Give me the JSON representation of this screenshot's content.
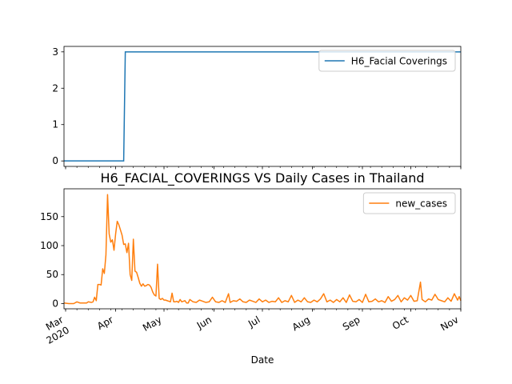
{
  "chart_data": [
    {
      "type": "line",
      "title": "",
      "xlabel": "",
      "ylabel": "",
      "ylim": [
        -0.15,
        3.15
      ],
      "yticks": [
        0,
        1,
        2,
        3
      ],
      "legend": "top-right",
      "series": [
        {
          "name": "H6_Facial Coverings",
          "color": "#1f77b4",
          "points": [
            [
              "2020-02-29",
              0
            ],
            [
              "2020-04-06",
              0
            ],
            [
              "2020-04-07",
              3
            ],
            [
              "2020-11-01",
              3
            ]
          ]
        }
      ]
    },
    {
      "type": "line",
      "title": "H6_FACIAL_COVERINGS VS Daily Cases in Thailand",
      "xlabel": "Date",
      "ylabel": "",
      "ylim": [
        -9,
        198
      ],
      "yticks": [
        0,
        50,
        100,
        150
      ],
      "legend": "top-right",
      "x_start": "2020-02-29",
      "x_end": "2020-11-01",
      "x_tick_labels": [
        {
          "date": "2020-03-01",
          "label": "Mar",
          "label2": "2020"
        },
        {
          "date": "2020-04-01",
          "label": "Apr"
        },
        {
          "date": "2020-05-01",
          "label": "May"
        },
        {
          "date": "2020-06-01",
          "label": "Jun"
        },
        {
          "date": "2020-07-01",
          "label": "Jul"
        },
        {
          "date": "2020-08-01",
          "label": "Aug"
        },
        {
          "date": "2020-09-01",
          "label": "Sep"
        },
        {
          "date": "2020-10-01",
          "label": "Oct"
        },
        {
          "date": "2020-11-01",
          "label": "Nov"
        }
      ],
      "series": [
        {
          "name": "new_cases",
          "color": "#ff7f0e",
          "points": [
            [
              "2020-02-29",
              1
            ],
            [
              "2020-03-03",
              0
            ],
            [
              "2020-03-06",
              0
            ],
            [
              "2020-03-08",
              3
            ],
            [
              "2020-03-10",
              1
            ],
            [
              "2020-03-12",
              1
            ],
            [
              "2020-03-14",
              1
            ],
            [
              "2020-03-15",
              3
            ],
            [
              "2020-03-17",
              2
            ],
            [
              "2020-03-18",
              3
            ],
            [
              "2020-03-19",
              11
            ],
            [
              "2020-03-20",
              5
            ],
            [
              "2020-03-21",
              33
            ],
            [
              "2020-03-22",
              33
            ],
            [
              "2020-03-23",
              32
            ],
            [
              "2020-03-24",
              60
            ],
            [
              "2020-03-25",
              52
            ],
            [
              "2020-03-26",
              84
            ],
            [
              "2020-03-27",
              188
            ],
            [
              "2020-03-28",
              120
            ],
            [
              "2020-03-29",
              106
            ],
            [
              "2020-03-30",
              110
            ],
            [
              "2020-03-31",
              92
            ],
            [
              "2020-04-01",
              120
            ],
            [
              "2020-04-02",
              142
            ],
            [
              "2020-04-03",
              136
            ],
            [
              "2020-04-04",
              127
            ],
            [
              "2020-04-05",
              118
            ],
            [
              "2020-04-06",
              102
            ],
            [
              "2020-04-07",
              103
            ],
            [
              "2020-04-08",
              88
            ],
            [
              "2020-04-09",
              104
            ],
            [
              "2020-04-10",
              50
            ],
            [
              "2020-04-11",
              40
            ],
            [
              "2020-04-12",
              111
            ],
            [
              "2020-04-13",
              56
            ],
            [
              "2020-04-14",
              54
            ],
            [
              "2020-04-15",
              45
            ],
            [
              "2020-04-16",
              35
            ],
            [
              "2020-04-17",
              30
            ],
            [
              "2020-04-18",
              34
            ],
            [
              "2020-04-19",
              30
            ],
            [
              "2020-04-20",
              31
            ],
            [
              "2020-04-21",
              33
            ],
            [
              "2020-04-22",
              32
            ],
            [
              "2020-04-23",
              28
            ],
            [
              "2020-04-24",
              20
            ],
            [
              "2020-04-25",
              15
            ],
            [
              "2020-04-26",
              13
            ],
            [
              "2020-04-27",
              68
            ],
            [
              "2020-04-28",
              9
            ],
            [
              "2020-04-29",
              7
            ],
            [
              "2020-04-30",
              9
            ],
            [
              "2020-05-01",
              6
            ],
            [
              "2020-05-02",
              6
            ],
            [
              "2020-05-03",
              5
            ],
            [
              "2020-05-04",
              4
            ],
            [
              "2020-05-05",
              3
            ],
            [
              "2020-05-06",
              18
            ],
            [
              "2020-05-07",
              3
            ],
            [
              "2020-05-08",
              3
            ],
            [
              "2020-05-09",
              4
            ],
            [
              "2020-05-10",
              2
            ],
            [
              "2020-05-11",
              7
            ],
            [
              "2020-05-12",
              3
            ],
            [
              "2020-05-13",
              4
            ],
            [
              "2020-05-14",
              5
            ],
            [
              "2020-05-15",
              1
            ],
            [
              "2020-05-16",
              1
            ],
            [
              "2020-05-17",
              7
            ],
            [
              "2020-05-19",
              3
            ],
            [
              "2020-05-21",
              2
            ],
            [
              "2020-05-23",
              6
            ],
            [
              "2020-05-25",
              4
            ],
            [
              "2020-05-27",
              2
            ],
            [
              "2020-05-29",
              3
            ],
            [
              "2020-05-31",
              11
            ],
            [
              "2020-06-02",
              3
            ],
            [
              "2020-06-04",
              2
            ],
            [
              "2020-06-06",
              5
            ],
            [
              "2020-06-08",
              2
            ],
            [
              "2020-06-10",
              17
            ],
            [
              "2020-06-11",
              2
            ],
            [
              "2020-06-13",
              5
            ],
            [
              "2020-06-15",
              4
            ],
            [
              "2020-06-17",
              8
            ],
            [
              "2020-06-19",
              3
            ],
            [
              "2020-06-21",
              2
            ],
            [
              "2020-06-23",
              6
            ],
            [
              "2020-06-25",
              4
            ],
            [
              "2020-06-27",
              2
            ],
            [
              "2020-06-29",
              8
            ],
            [
              "2020-07-01",
              3
            ],
            [
              "2020-07-03",
              6
            ],
            [
              "2020-07-05",
              2
            ],
            [
              "2020-07-07",
              4
            ],
            [
              "2020-07-09",
              3
            ],
            [
              "2020-07-11",
              10
            ],
            [
              "2020-07-13",
              2
            ],
            [
              "2020-07-15",
              5
            ],
            [
              "2020-07-17",
              3
            ],
            [
              "2020-07-19",
              14
            ],
            [
              "2020-07-21",
              2
            ],
            [
              "2020-07-23",
              6
            ],
            [
              "2020-07-25",
              3
            ],
            [
              "2020-07-27",
              10
            ],
            [
              "2020-07-29",
              3
            ],
            [
              "2020-07-31",
              2
            ],
            [
              "2020-08-02",
              6
            ],
            [
              "2020-08-04",
              3
            ],
            [
              "2020-08-06",
              8
            ],
            [
              "2020-08-08",
              17
            ],
            [
              "2020-08-10",
              3
            ],
            [
              "2020-08-12",
              6
            ],
            [
              "2020-08-14",
              2
            ],
            [
              "2020-08-16",
              7
            ],
            [
              "2020-08-18",
              3
            ],
            [
              "2020-08-20",
              10
            ],
            [
              "2020-08-22",
              2
            ],
            [
              "2020-08-24",
              15
            ],
            [
              "2020-08-26",
              4
            ],
            [
              "2020-08-28",
              3
            ],
            [
              "2020-08-30",
              7
            ],
            [
              "2020-09-01",
              2
            ],
            [
              "2020-09-03",
              16
            ],
            [
              "2020-09-05",
              3
            ],
            [
              "2020-09-07",
              4
            ],
            [
              "2020-09-09",
              8
            ],
            [
              "2020-09-11",
              3
            ],
            [
              "2020-09-13",
              5
            ],
            [
              "2020-09-15",
              2
            ],
            [
              "2020-09-17",
              12
            ],
            [
              "2020-09-19",
              4
            ],
            [
              "2020-09-21",
              7
            ],
            [
              "2020-09-23",
              14
            ],
            [
              "2020-09-25",
              3
            ],
            [
              "2020-09-27",
              10
            ],
            [
              "2020-09-29",
              6
            ],
            [
              "2020-10-01",
              14
            ],
            [
              "2020-10-03",
              4
            ],
            [
              "2020-10-05",
              5
            ],
            [
              "2020-10-07",
              37
            ],
            [
              "2020-10-08",
              7
            ],
            [
              "2020-10-10",
              3
            ],
            [
              "2020-10-12",
              8
            ],
            [
              "2020-10-14",
              6
            ],
            [
              "2020-10-16",
              16
            ],
            [
              "2020-10-18",
              7
            ],
            [
              "2020-10-20",
              5
            ],
            [
              "2020-10-22",
              3
            ],
            [
              "2020-10-24",
              10
            ],
            [
              "2020-10-26",
              4
            ],
            [
              "2020-10-28",
              17
            ],
            [
              "2020-10-30",
              6
            ],
            [
              "2020-10-31",
              12
            ],
            [
              "2020-11-01",
              5
            ]
          ]
        }
      ]
    }
  ]
}
